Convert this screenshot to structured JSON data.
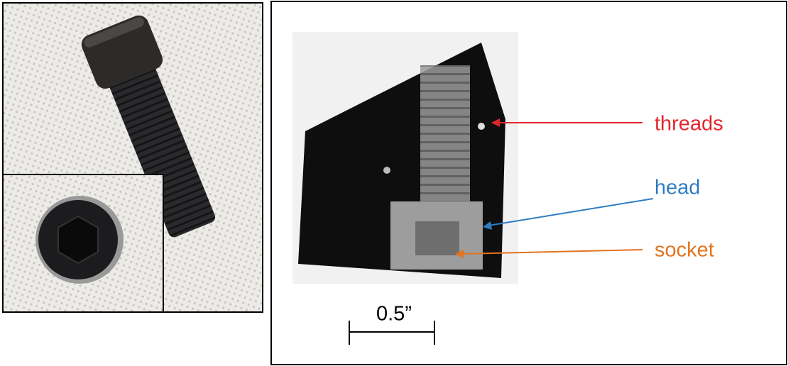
{
  "annotations": [
    {
      "label": "threads",
      "color": "#e3262b"
    },
    {
      "label": "head",
      "color": "#2f7cc4"
    },
    {
      "label": "socket",
      "color": "#e2741f"
    }
  ],
  "scale_bar": "0.5”"
}
